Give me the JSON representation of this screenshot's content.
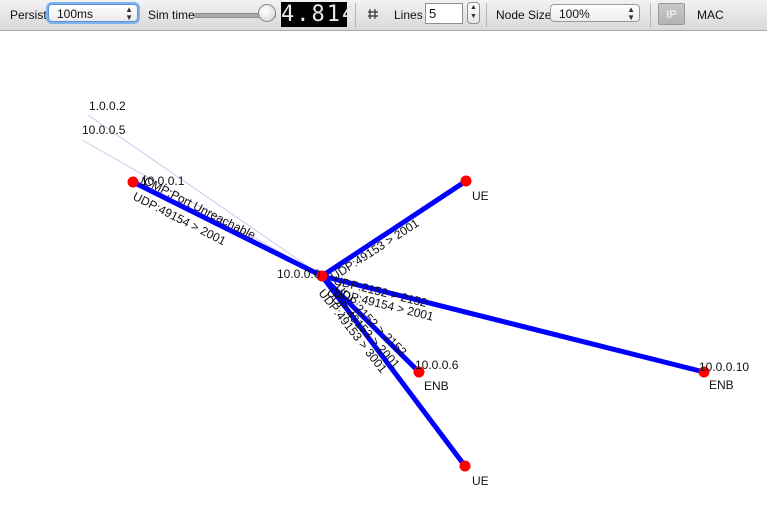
{
  "toolbar": {
    "persist_label": "Persist",
    "persist_value": "100ms",
    "simtime_label": "Sim time",
    "simtime_display": "4.814",
    "lines_label": "Lines",
    "lines_value": "5",
    "nodesize_label": "Node Size",
    "nodesize_value": "100%",
    "ip_label": "IP",
    "mac_label": "MAC"
  },
  "colors": {
    "node": "#ff0000",
    "link": "#0000ff",
    "faint_link": "#c8ccf2"
  },
  "nodes": [
    {
      "id": "n_10_0_0_1",
      "label": "10.0.0.1"
    },
    {
      "id": "n_center",
      "label": "10.0.0.0"
    },
    {
      "id": "n_ue_top",
      "label": "UE"
    },
    {
      "id": "n_enb_6_ip",
      "label": "10.0.0.6"
    },
    {
      "id": "n_enb_6_type",
      "label": "ENB"
    },
    {
      "id": "n_enb_10_ip",
      "label": "10.0.0.10"
    },
    {
      "id": "n_enb_10_type",
      "label": "ENB"
    },
    {
      "id": "n_ue_bottom",
      "label": "UE"
    },
    {
      "id": "n_1_0_0_2",
      "label": "1.0.0.2"
    },
    {
      "id": "n_10_0_0_5",
      "label": "10.0.0.5"
    }
  ],
  "packet_labels": [
    {
      "id": "p1",
      "text": "UDP:49154 > 2001"
    },
    {
      "id": "p2",
      "text": "ICMP:Port Unreachable"
    },
    {
      "id": "p3",
      "text": "UDP:49153 > 2001"
    },
    {
      "id": "p4",
      "text": "UDP:2152 > 2152"
    },
    {
      "id": "p5",
      "text": "UDP:49154 > 2001"
    },
    {
      "id": "p6",
      "text": "UDP:2152 > 2152"
    },
    {
      "id": "p7",
      "text": "UDP:49153 > 3001"
    },
    {
      "id": "p8",
      "text": "UDP:49153 > 2001"
    }
  ]
}
